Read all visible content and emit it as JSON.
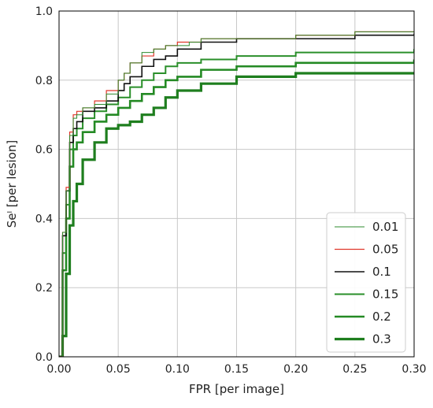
{
  "chart_data": {
    "type": "line",
    "title": "",
    "xlabel": "FPR [per image]",
    "ylabel": "Seˡ [per lesion]",
    "xlim": [
      0,
      0.3
    ],
    "ylim": [
      0,
      1.0
    ],
    "x_ticks": [
      "0.00",
      "0.05",
      "0.10",
      "0.15",
      "0.20",
      "0.25",
      "0.30"
    ],
    "y_ticks": [
      "0.0",
      "0.2",
      "0.4",
      "0.6",
      "0.8",
      "1.0"
    ],
    "grid": true,
    "legend_position": "lower-right",
    "series": [
      {
        "name": "0.01",
        "color": "#2e8b2e",
        "width": 1.0,
        "points": [
          [
            0,
            0
          ],
          [
            0.003,
            0.36
          ],
          [
            0.006,
            0.48
          ],
          [
            0.009,
            0.64
          ],
          [
            0.012,
            0.69
          ],
          [
            0.015,
            0.7
          ],
          [
            0.02,
            0.72
          ],
          [
            0.03,
            0.73
          ],
          [
            0.04,
            0.76
          ],
          [
            0.05,
            0.8
          ],
          [
            0.055,
            0.82
          ],
          [
            0.06,
            0.85
          ],
          [
            0.07,
            0.88
          ],
          [
            0.08,
            0.89
          ],
          [
            0.09,
            0.9
          ],
          [
            0.1,
            0.9
          ],
          [
            0.11,
            0.91
          ],
          [
            0.12,
            0.92
          ],
          [
            0.15,
            0.92
          ],
          [
            0.2,
            0.93
          ],
          [
            0.25,
            0.94
          ],
          [
            0.3,
            0.95
          ]
        ]
      },
      {
        "name": "0.05",
        "color": "#e0362a",
        "width": 1.2,
        "points": [
          [
            0,
            0
          ],
          [
            0.003,
            0.36
          ],
          [
            0.006,
            0.49
          ],
          [
            0.009,
            0.65
          ],
          [
            0.012,
            0.7
          ],
          [
            0.015,
            0.71
          ],
          [
            0.02,
            0.72
          ],
          [
            0.03,
            0.74
          ],
          [
            0.04,
            0.77
          ],
          [
            0.05,
            0.8
          ],
          [
            0.055,
            0.82
          ],
          [
            0.06,
            0.85
          ],
          [
            0.07,
            0.87
          ],
          [
            0.08,
            0.89
          ],
          [
            0.09,
            0.9
          ],
          [
            0.1,
            0.91
          ],
          [
            0.11,
            0.91
          ],
          [
            0.12,
            0.92
          ],
          [
            0.15,
            0.92
          ],
          [
            0.2,
            0.93
          ],
          [
            0.25,
            0.94
          ],
          [
            0.3,
            0.94
          ]
        ]
      },
      {
        "name": "0.1",
        "color": "#111111",
        "width": 1.6,
        "points": [
          [
            0,
            0
          ],
          [
            0.003,
            0.35
          ],
          [
            0.006,
            0.48
          ],
          [
            0.009,
            0.62
          ],
          [
            0.012,
            0.66
          ],
          [
            0.015,
            0.68
          ],
          [
            0.02,
            0.71
          ],
          [
            0.03,
            0.72
          ],
          [
            0.04,
            0.74
          ],
          [
            0.05,
            0.77
          ],
          [
            0.055,
            0.79
          ],
          [
            0.06,
            0.81
          ],
          [
            0.07,
            0.84
          ],
          [
            0.08,
            0.86
          ],
          [
            0.09,
            0.87
          ],
          [
            0.1,
            0.89
          ],
          [
            0.12,
            0.91
          ],
          [
            0.15,
            0.92
          ],
          [
            0.2,
            0.92
          ],
          [
            0.25,
            0.93
          ],
          [
            0.3,
            0.935
          ]
        ]
      },
      {
        "name": "0.15",
        "color": "#2a8f2a",
        "width": 2.0,
        "points": [
          [
            0,
            0
          ],
          [
            0.003,
            0.3
          ],
          [
            0.006,
            0.44
          ],
          [
            0.009,
            0.6
          ],
          [
            0.012,
            0.64
          ],
          [
            0.015,
            0.66
          ],
          [
            0.02,
            0.69
          ],
          [
            0.03,
            0.71
          ],
          [
            0.04,
            0.73
          ],
          [
            0.05,
            0.75
          ],
          [
            0.06,
            0.78
          ],
          [
            0.07,
            0.8
          ],
          [
            0.08,
            0.82
          ],
          [
            0.09,
            0.84
          ],
          [
            0.1,
            0.85
          ],
          [
            0.12,
            0.86
          ],
          [
            0.15,
            0.87
          ],
          [
            0.2,
            0.88
          ],
          [
            0.25,
            0.88
          ],
          [
            0.3,
            0.89
          ]
        ]
      },
      {
        "name": "0.2",
        "color": "#248a24",
        "width": 2.6,
        "points": [
          [
            0,
            0
          ],
          [
            0.003,
            0.25
          ],
          [
            0.006,
            0.4
          ],
          [
            0.009,
            0.55
          ],
          [
            0.012,
            0.6
          ],
          [
            0.015,
            0.62
          ],
          [
            0.02,
            0.65
          ],
          [
            0.03,
            0.68
          ],
          [
            0.04,
            0.7
          ],
          [
            0.05,
            0.72
          ],
          [
            0.06,
            0.74
          ],
          [
            0.07,
            0.76
          ],
          [
            0.08,
            0.78
          ],
          [
            0.09,
            0.8
          ],
          [
            0.1,
            0.81
          ],
          [
            0.12,
            0.83
          ],
          [
            0.15,
            0.84
          ],
          [
            0.2,
            0.85
          ],
          [
            0.25,
            0.85
          ],
          [
            0.3,
            0.86
          ]
        ]
      },
      {
        "name": "0.3",
        "color": "#1e7e1e",
        "width": 3.2,
        "points": [
          [
            0,
            0
          ],
          [
            0.003,
            0.06
          ],
          [
            0.006,
            0.24
          ],
          [
            0.009,
            0.38
          ],
          [
            0.012,
            0.45
          ],
          [
            0.015,
            0.5
          ],
          [
            0.02,
            0.57
          ],
          [
            0.03,
            0.62
          ],
          [
            0.04,
            0.66
          ],
          [
            0.05,
            0.67
          ],
          [
            0.06,
            0.68
          ],
          [
            0.07,
            0.7
          ],
          [
            0.08,
            0.72
          ],
          [
            0.09,
            0.75
          ],
          [
            0.1,
            0.77
          ],
          [
            0.12,
            0.79
          ],
          [
            0.15,
            0.81
          ],
          [
            0.2,
            0.82
          ],
          [
            0.25,
            0.82
          ],
          [
            0.3,
            0.82
          ]
        ]
      }
    ]
  }
}
